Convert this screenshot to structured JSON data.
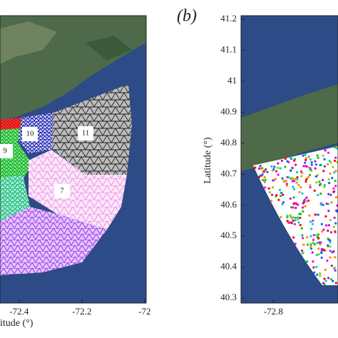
{
  "panels": [
    {
      "xlabel": "itude (°)",
      "xticks": [
        -72.4,
        -72.2,
        -72
      ],
      "xlim": [
        -72.461,
        -71.995
      ],
      "regions": [
        {
          "label": "10"
        },
        {
          "label": "11"
        },
        {
          "label": "9"
        },
        {
          "label": "7"
        }
      ]
    },
    {
      "label": "(b)",
      "ylabel": "Latitude (°)",
      "yticks": [
        40.3,
        40.4,
        40.5,
        40.6,
        40.7,
        40.8,
        40.9,
        41,
        41.1,
        41.2
      ],
      "ylim": [
        40.284,
        41.212
      ],
      "xticks": [
        -72.8
      ],
      "xlim": [
        -72.9,
        -72.6
      ]
    }
  ]
}
